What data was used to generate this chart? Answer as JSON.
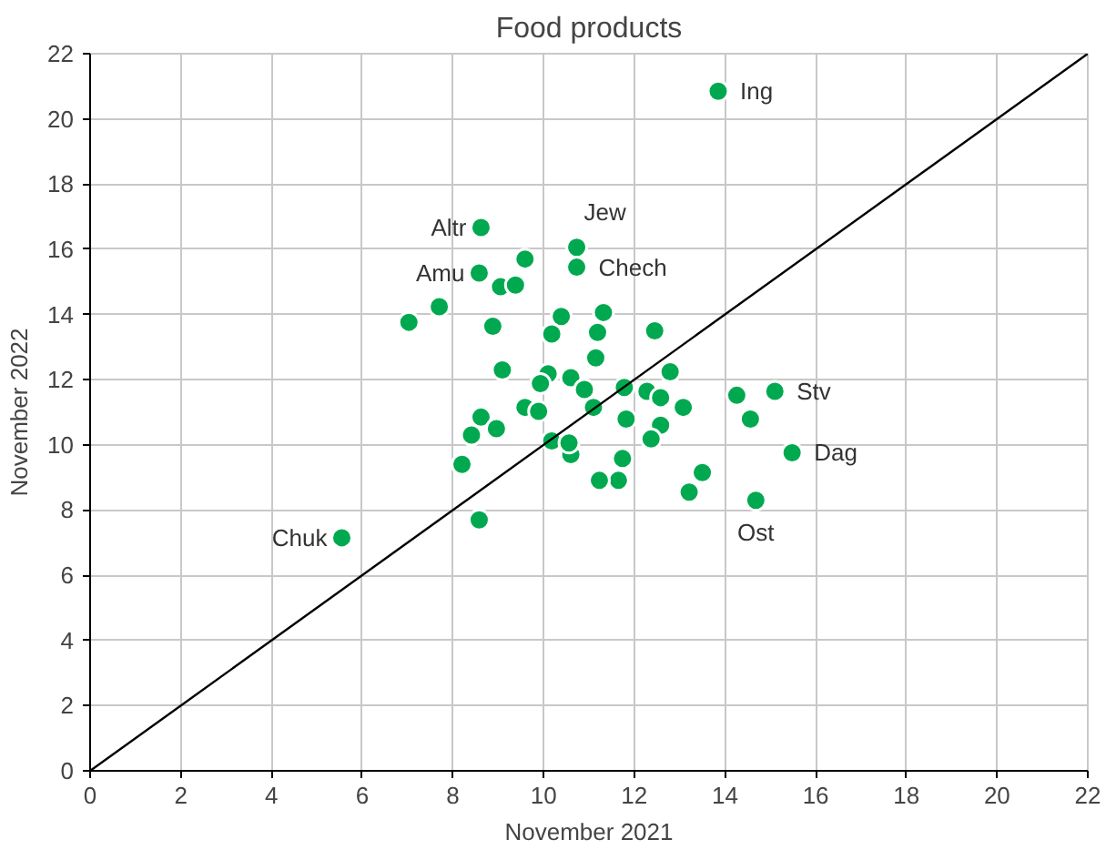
{
  "chart_data": {
    "type": "scatter",
    "title": "Food products",
    "xlabel": "November 2021",
    "ylabel": "November 2022",
    "xlim": [
      0,
      22
    ],
    "ylim": [
      0,
      22
    ],
    "xticks": [
      0,
      2,
      4,
      6,
      8,
      10,
      12,
      14,
      16,
      18,
      20,
      22
    ],
    "yticks": [
      0,
      2,
      4,
      6,
      8,
      10,
      12,
      14,
      16,
      18,
      20,
      22
    ],
    "grid": true,
    "marker": "circle",
    "series": [
      {
        "color": "#00a94f",
        "x": [
          13.85,
          5.55,
          7.03,
          7.7,
          8.62,
          8.58,
          9.05,
          9.38,
          9.59,
          8.88,
          9.09,
          8.62,
          8.96,
          8.41,
          8.2,
          8.58,
          10.73,
          10.73,
          10.39,
          11.32,
          11.19,
          10.1,
          10.6,
          9.59,
          9.89,
          10.18,
          10.6,
          11.15,
          12.45,
          10.18,
          11.78,
          10.9,
          9.93,
          12.79,
          12.28,
          12.58,
          13.08,
          11.1,
          11.82,
          12.58,
          12.37,
          11.74,
          11.65,
          11.23,
          13.5,
          13.21,
          14.26,
          15.1,
          14.56,
          15.48,
          14.68,
          10.56
        ],
        "values": [
          20.85,
          7.15,
          13.76,
          14.24,
          16.67,
          15.27,
          14.85,
          14.9,
          15.7,
          13.64,
          12.3,
          10.85,
          10.5,
          10.3,
          9.4,
          7.7,
          16.06,
          15.45,
          13.94,
          14.06,
          13.45,
          12.18,
          12.06,
          11.15,
          11.03,
          10.12,
          9.7,
          12.67,
          13.5,
          13.4,
          11.76,
          11.7,
          11.88,
          12.24,
          11.64,
          11.45,
          11.15,
          11.15,
          10.79,
          10.6,
          10.18,
          9.58,
          8.91,
          8.91,
          9.15,
          8.55,
          11.52,
          11.64,
          10.79,
          9.76,
          8.3,
          10.06
        ]
      },
      {
        "type": "line",
        "marker": "none",
        "color": "#000000",
        "x": [
          0,
          22
        ],
        "values": [
          0,
          22
        ]
      }
    ],
    "annotations": [
      {
        "text": "Ing",
        "x": 13.85,
        "y": 20.85
      },
      {
        "text": "Jew",
        "x": 10.73,
        "y": 16.06
      },
      {
        "text": "Chech",
        "x": 10.73,
        "y": 15.45
      },
      {
        "text": "Altr",
        "x": 8.62,
        "y": 16.67
      },
      {
        "text": "Amu",
        "x": 8.58,
        "y": 15.27
      },
      {
        "text": "Chuk",
        "x": 5.55,
        "y": 7.15
      },
      {
        "text": "Stv",
        "x": 15.1,
        "y": 11.64
      },
      {
        "text": "Dag",
        "x": 15.48,
        "y": 9.76
      },
      {
        "text": "Ost",
        "x": 14.68,
        "y": 8.3
      }
    ]
  }
}
